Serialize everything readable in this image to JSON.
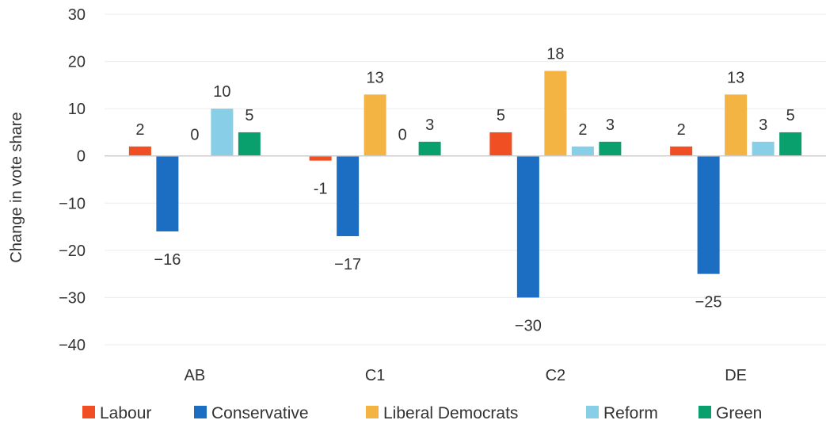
{
  "chart_data": {
    "type": "bar",
    "categories": [
      "AB",
      "C1",
      "C2",
      "DE"
    ],
    "series": [
      {
        "name": "Labour",
        "color": "#f04e23",
        "values": [
          2,
          -1,
          5,
          2
        ],
        "labels": [
          "2",
          "-1",
          "5",
          "2"
        ]
      },
      {
        "name": "Conservative",
        "color": "#1b6ec2",
        "values": [
          -16,
          -17,
          -30,
          -25
        ],
        "labels": [
          "−16",
          "−17",
          "−30",
          "−25"
        ]
      },
      {
        "name": "Liberal Democrats",
        "color": "#f3b443",
        "values": [
          0,
          13,
          18,
          13
        ],
        "labels": [
          "0",
          "13",
          "18",
          "13"
        ]
      },
      {
        "name": "Reform",
        "color": "#87cee6",
        "values": [
          10,
          0,
          2,
          3
        ],
        "labels": [
          "10",
          "0",
          "2",
          "3"
        ]
      },
      {
        "name": "Green",
        "color": "#0aa06e",
        "values": [
          5,
          3,
          3,
          5
        ],
        "labels": [
          "5",
          "3",
          "3",
          "5"
        ]
      }
    ],
    "ylabel": "Change in vote share",
    "xlabel": "",
    "ylim": [
      -40,
      30
    ],
    "yticks": [
      30,
      20,
      10,
      0,
      -10,
      -20,
      -30,
      -40
    ],
    "ytick_labels": [
      "30",
      "20",
      "10",
      "0",
      "−10",
      "−20",
      "−30",
      "−40"
    ],
    "grid": true,
    "legend_position": "bottom",
    "colors": {
      "grid": "#ebebeb",
      "zero_line": "#cccccc",
      "text": "#333333"
    }
  }
}
